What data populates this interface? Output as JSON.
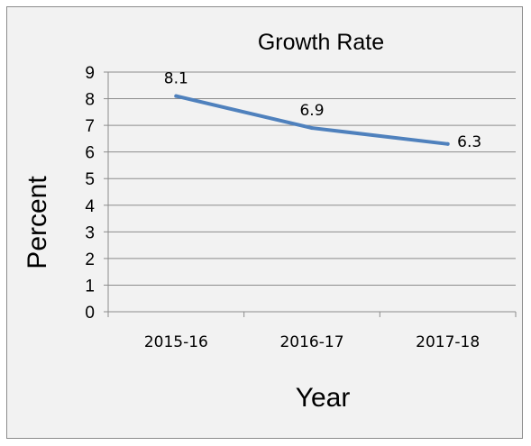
{
  "chart_data": {
    "type": "line",
    "title": "Growth Rate",
    "xlabel": "Year",
    "ylabel": "Percent",
    "categories": [
      "2015-16",
      "2016-17",
      "2017-18"
    ],
    "series": [
      {
        "values": [
          8.1,
          6.9,
          6.3
        ],
        "color": "#4f81bd"
      }
    ],
    "data_labels": [
      "8.1",
      "6.9",
      "6.3"
    ],
    "ylim": [
      0,
      9
    ],
    "yticks": [
      "0",
      "1",
      "2",
      "3",
      "4",
      "5",
      "6",
      "7",
      "8",
      "9"
    ],
    "grid": true,
    "legend": "none"
  }
}
